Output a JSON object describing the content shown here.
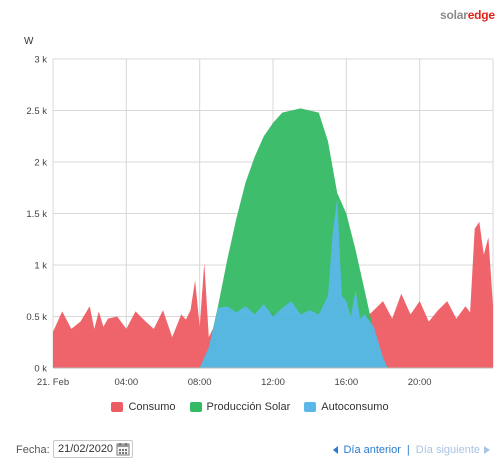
{
  "brand": {
    "logo_part1": "solar",
    "logo_part2": "edge",
    "accent": "#e2231a"
  },
  "colors": {
    "consumo": "#ee5c63",
    "produccion": "#34b964",
    "autoconsumo": "#5ab7e8",
    "grid": "#d8d8d8"
  },
  "chart_data": {
    "type": "area",
    "ylabel": "W",
    "ylim": [
      0,
      3000
    ],
    "yticks": [
      "0 k",
      "0.5 k",
      "1 k",
      "1.5 k",
      "2 k",
      "2.5 k",
      "3 k"
    ],
    "xticks": [
      "21. Feb",
      "04:00",
      "08:00",
      "12:00",
      "16:00",
      "20:00"
    ],
    "xlim": [
      "00:00",
      "24:00"
    ],
    "grid": true,
    "legend_position": "bottom",
    "series": [
      {
        "name": "Consumo",
        "x": [
          "00:00",
          "00:30",
          "01:00",
          "01:30",
          "02:00",
          "02:15",
          "02:30",
          "02:45",
          "03:00",
          "03:30",
          "04:00",
          "04:30",
          "05:00",
          "05:30",
          "06:00",
          "06:30",
          "07:00",
          "07:15",
          "07:30",
          "07:45",
          "08:00",
          "08:15",
          "08:30",
          "09:00",
          "09:30",
          "10:00",
          "11:00",
          "12:00",
          "13:00",
          "14:00",
          "15:00",
          "15:30",
          "16:00",
          "16:30",
          "17:00",
          "17:30",
          "18:00",
          "18:30",
          "19:00",
          "19:30",
          "20:00",
          "20:30",
          "21:00",
          "21:30",
          "22:00",
          "22:30",
          "22:45",
          "23:00",
          "23:15",
          "23:30",
          "23:45",
          "24:00"
        ],
        "values": [
          350,
          550,
          380,
          450,
          600,
          380,
          550,
          400,
          480,
          500,
          380,
          550,
          460,
          380,
          560,
          300,
          520,
          470,
          560,
          850,
          400,
          1020,
          300,
          480,
          600,
          520,
          480,
          540,
          500,
          520,
          560,
          700,
          520,
          500,
          480,
          560,
          650,
          480,
          720,
          520,
          650,
          450,
          560,
          650,
          480,
          600,
          540,
          1350,
          1420,
          1100,
          1270,
          600
        ]
      },
      {
        "name": "Producción Solar",
        "x": [
          "08:00",
          "08:30",
          "09:00",
          "09:30",
          "10:00",
          "10:30",
          "11:00",
          "11:30",
          "12:00",
          "12:30",
          "13:00",
          "13:30",
          "14:00",
          "14:30",
          "15:00",
          "15:30",
          "16:00",
          "16:30",
          "17:00",
          "17:30",
          "18:00",
          "18:15"
        ],
        "values": [
          0,
          200,
          600,
          1050,
          1450,
          1800,
          2050,
          2250,
          2380,
          2480,
          2500,
          2520,
          2500,
          2480,
          2200,
          1700,
          1500,
          1150,
          750,
          350,
          100,
          0
        ]
      },
      {
        "name": "Autoconsumo",
        "x": [
          "08:00",
          "08:30",
          "09:00",
          "09:30",
          "10:00",
          "10:30",
          "11:00",
          "11:30",
          "12:00",
          "12:30",
          "13:00",
          "13:30",
          "14:00",
          "14:30",
          "15:00",
          "15:15",
          "15:30",
          "15:45",
          "16:00",
          "16:15",
          "16:30",
          "16:45",
          "17:00",
          "17:30",
          "18:00",
          "18:15"
        ],
        "values": [
          0,
          200,
          580,
          600,
          540,
          600,
          520,
          620,
          500,
          580,
          650,
          520,
          560,
          520,
          700,
          1300,
          1650,
          700,
          650,
          500,
          750,
          480,
          520,
          400,
          100,
          0
        ]
      }
    ]
  },
  "legend": {
    "items": [
      "Consumo",
      "Producción Solar",
      "Autoconsumo"
    ]
  },
  "footer": {
    "fecha_label": "Fecha:",
    "date_value": "21/02/2020",
    "prev_label": "Día anterior",
    "separator": "|",
    "next_label": "Día siguiente"
  }
}
